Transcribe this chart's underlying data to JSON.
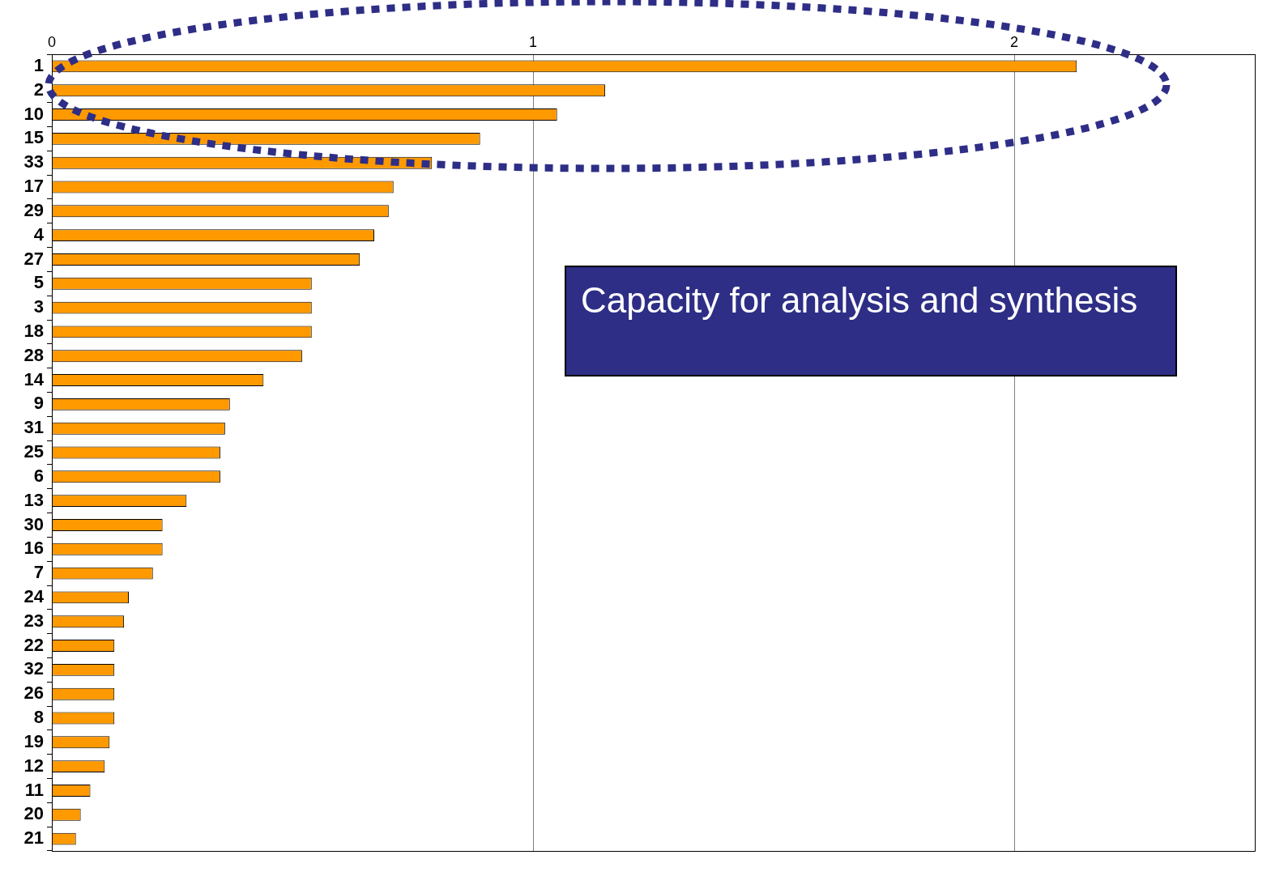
{
  "chart_data": {
    "type": "bar",
    "orientation": "horizontal",
    "categories": [
      "1",
      "2",
      "10",
      "15",
      "33",
      "17",
      "29",
      "4",
      "27",
      "5",
      "3",
      "18",
      "28",
      "14",
      "9",
      "31",
      "25",
      "6",
      "13",
      "30",
      "16",
      "7",
      "24",
      "23",
      "22",
      "32",
      "26",
      "8",
      "19",
      "12",
      "11",
      "20",
      "21"
    ],
    "values": [
      2.13,
      1.15,
      1.05,
      0.89,
      0.79,
      0.71,
      0.7,
      0.67,
      0.64,
      0.54,
      0.54,
      0.54,
      0.52,
      0.44,
      0.37,
      0.36,
      0.35,
      0.35,
      0.28,
      0.23,
      0.23,
      0.21,
      0.16,
      0.15,
      0.13,
      0.13,
      0.13,
      0.13,
      0.12,
      0.11,
      0.08,
      0.06,
      0.05
    ],
    "color": "#ff9900",
    "xlim": [
      0,
      2.5
    ],
    "xticks": [
      0,
      1,
      2
    ],
    "grid": "x",
    "annotations": [
      "Capacity for analysis and synthesis"
    ]
  }
}
